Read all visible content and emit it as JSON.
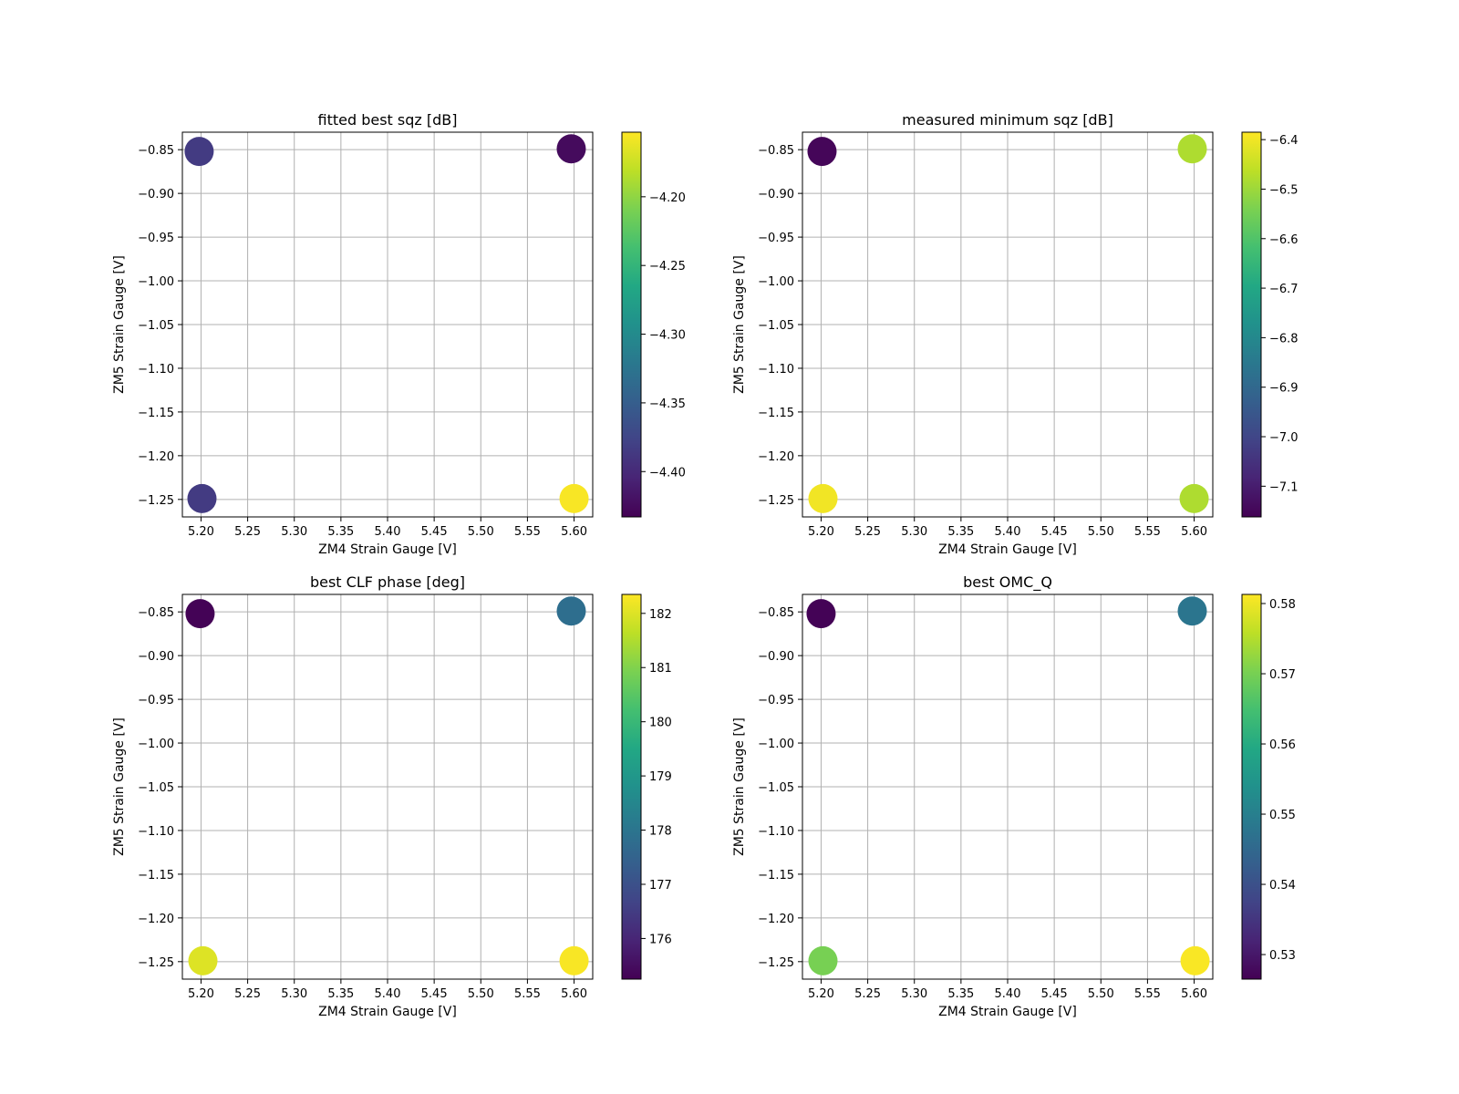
{
  "chart_data": [
    {
      "type": "scatter",
      "title": "fitted best sqz [dB]",
      "xlabel": "ZM4 Strain Gauge [V]",
      "ylabel": "ZM5 Strain Gauge [V]",
      "xlim": [
        5.18,
        5.62
      ],
      "ylim": [
        -1.27,
        -0.83
      ],
      "xticks": [
        "5.20",
        "5.25",
        "5.30",
        "5.35",
        "5.40",
        "5.45",
        "5.50",
        "5.55",
        "5.60"
      ],
      "yticks": [
        "−0.85",
        "−0.90",
        "−0.95",
        "−1.00",
        "−1.05",
        "−1.10",
        "−1.15",
        "−1.20",
        "−1.25"
      ],
      "grid": true,
      "colormap": "viridis",
      "points": [
        {
          "x": 5.198,
          "y": -0.852,
          "c": -4.385
        },
        {
          "x": 5.597,
          "y": -0.849,
          "c": -4.425
        },
        {
          "x": 5.201,
          "y": -1.249,
          "c": -4.385
        },
        {
          "x": 5.6,
          "y": -1.249,
          "c": -4.155
        }
      ],
      "colorbar": {
        "vmin": -4.433,
        "vmax": -4.153,
        "ticks": [
          "−4.20",
          "−4.25",
          "−4.30",
          "−4.35",
          "−4.40"
        ]
      }
    },
    {
      "type": "scatter",
      "title": "measured minimum sqz [dB]",
      "xlabel": "ZM4 Strain Gauge [V]",
      "ylabel": "ZM5 Strain Gauge [V]",
      "xlim": [
        5.18,
        5.62
      ],
      "ylim": [
        -1.27,
        -0.83
      ],
      "xticks": [
        "5.20",
        "5.25",
        "5.30",
        "5.35",
        "5.40",
        "5.45",
        "5.50",
        "5.55",
        "5.60"
      ],
      "yticks": [
        "−0.85",
        "−0.90",
        "−0.95",
        "−1.00",
        "−1.05",
        "−1.10",
        "−1.15",
        "−1.20",
        "−1.25"
      ],
      "grid": true,
      "colormap": "viridis",
      "points": [
        {
          "x": 5.201,
          "y": -0.852,
          "c": -7.15
        },
        {
          "x": 5.598,
          "y": -0.849,
          "c": -6.48
        },
        {
          "x": 5.202,
          "y": -1.249,
          "c": -6.4
        },
        {
          "x": 5.6,
          "y": -1.249,
          "c": -6.48
        }
      ],
      "colorbar": {
        "vmin": -7.162,
        "vmax": -6.385,
        "ticks": [
          "−6.4",
          "−6.5",
          "−6.6",
          "−6.7",
          "−6.8",
          "−6.9",
          "−7.0",
          "−7.1"
        ]
      }
    },
    {
      "type": "scatter",
      "title": "best CLF phase [deg]",
      "xlabel": "ZM4 Strain Gauge [V]",
      "ylabel": "ZM5 Strain Gauge [V]",
      "xlim": [
        5.18,
        5.62
      ],
      "ylim": [
        -1.27,
        -0.83
      ],
      "xticks": [
        "5.20",
        "5.25",
        "5.30",
        "5.35",
        "5.40",
        "5.45",
        "5.50",
        "5.55",
        "5.60"
      ],
      "yticks": [
        "−0.85",
        "−0.90",
        "−0.95",
        "−1.00",
        "−1.05",
        "−1.10",
        "−1.15",
        "−1.20",
        "−1.25"
      ],
      "grid": true,
      "colormap": "viridis",
      "points": [
        {
          "x": 5.199,
          "y": -0.852,
          "c": 175.3
        },
        {
          "x": 5.597,
          "y": -0.849,
          "c": 177.8
        },
        {
          "x": 5.202,
          "y": -1.249,
          "c": 182.0
        },
        {
          "x": 5.6,
          "y": -1.249,
          "c": 182.3
        }
      ],
      "colorbar": {
        "vmin": 175.25,
        "vmax": 182.35,
        "ticks": [
          "182",
          "181",
          "180",
          "179",
          "178",
          "177",
          "176"
        ]
      }
    },
    {
      "type": "scatter",
      "title": "best OMC_Q",
      "xlabel": "ZM4 Strain Gauge [V]",
      "ylabel": "ZM5 Strain Gauge [V]",
      "xlim": [
        5.18,
        5.62
      ],
      "ylim": [
        -1.27,
        -0.83
      ],
      "xticks": [
        "5.20",
        "5.25",
        "5.30",
        "5.35",
        "5.40",
        "5.45",
        "5.50",
        "5.55",
        "5.60"
      ],
      "yticks": [
        "−0.85",
        "−0.90",
        "−0.95",
        "−1.00",
        "−1.05",
        "−1.10",
        "−1.15",
        "−1.20",
        "−1.25"
      ],
      "grid": true,
      "colormap": "viridis",
      "points": [
        {
          "x": 5.2,
          "y": -0.852,
          "c": 0.5268
        },
        {
          "x": 5.598,
          "y": -0.849,
          "c": 0.5478
        },
        {
          "x": 5.202,
          "y": -1.249,
          "c": 0.57
        },
        {
          "x": 5.601,
          "y": -1.249,
          "c": 0.581
        }
      ],
      "colorbar": {
        "vmin": 0.5265,
        "vmax": 0.5813,
        "ticks": [
          "0.58",
          "0.57",
          "0.56",
          "0.55",
          "0.54",
          "0.53"
        ]
      }
    }
  ]
}
